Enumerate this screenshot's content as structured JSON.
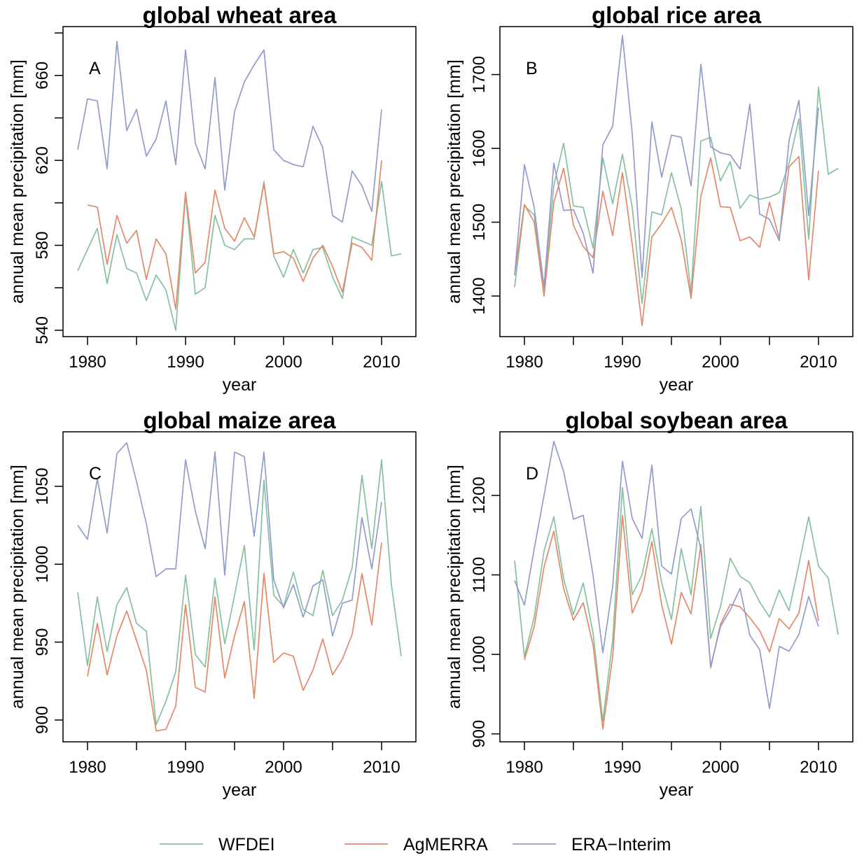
{
  "legend": {
    "position": "bottom",
    "entries": [
      {
        "label": "WFDEI",
        "color": "#86c0a0"
      },
      {
        "label": "AgMERRA",
        "color": "#e3896a"
      },
      {
        "label": "ERA−Interim",
        "color": "#929ccb"
      }
    ]
  },
  "chart_data": [
    {
      "type": "line",
      "panel_letter": "A",
      "title": "global wheat area",
      "xlabel": "year",
      "ylabel": "annual mean precipitation [mm]",
      "xlim": [
        1977.5,
        2013.5
      ],
      "ylim": [
        537,
        683
      ],
      "xticks": [
        1980,
        1985,
        1990,
        1995,
        2000,
        2005,
        2010
      ],
      "xtick_labels": [
        "1980",
        "",
        "1990",
        "",
        "2000",
        "",
        "2010"
      ],
      "yticks": [
        540,
        560,
        580,
        600,
        620,
        640,
        660,
        680
      ],
      "ytick_labels": [
        "540",
        "",
        "580",
        "",
        "620",
        "",
        "660",
        ""
      ],
      "grid": false,
      "series": [
        {
          "name": "WFDEI",
          "color": "#86c0a0",
          "x": [
            1979,
            1980,
            1981,
            1982,
            1983,
            1984,
            1985,
            1986,
            1987,
            1988,
            1989,
            1990,
            1991,
            1992,
            1993,
            1994,
            1995,
            1996,
            1997,
            1998,
            1999,
            2000,
            2001,
            2002,
            2003,
            2004,
            2005,
            2006,
            2007,
            2008,
            2009,
            2010,
            2011,
            2012
          ],
          "values": [
            568,
            578,
            588,
            562,
            585,
            569,
            567,
            554,
            566,
            559,
            540,
            604,
            557,
            560,
            594,
            580,
            578,
            583,
            583,
            610,
            575,
            565,
            578,
            567,
            578,
            579,
            565,
            555,
            584,
            582,
            580,
            610,
            575,
            576
          ]
        },
        {
          "name": "AgMERRA",
          "color": "#e3896a",
          "x": [
            1980,
            1981,
            1982,
            1983,
            1984,
            1985,
            1986,
            1987,
            1988,
            1989,
            1990,
            1991,
            1992,
            1993,
            1994,
            1995,
            1996,
            1997,
            1998,
            1999,
            2000,
            2001,
            2002,
            2003,
            2004,
            2005,
            2006,
            2007,
            2008,
            2009,
            2010
          ],
          "values": [
            599,
            598,
            571,
            594,
            581,
            587,
            564,
            583,
            576,
            550,
            605,
            567,
            572,
            606,
            588,
            582,
            593,
            584,
            609,
            576,
            577,
            574,
            563,
            574,
            580,
            570,
            558,
            581,
            579,
            573,
            620
          ]
        },
        {
          "name": "ERA−Interim",
          "color": "#929ccb",
          "x": [
            1979,
            1980,
            1981,
            1982,
            1983,
            1984,
            1985,
            1986,
            1987,
            1988,
            1989,
            1990,
            1991,
            1992,
            1993,
            1994,
            1995,
            1996,
            1997,
            1998,
            1999,
            2000,
            2001,
            2002,
            2003,
            2004,
            2005,
            2006,
            2007,
            2008,
            2009,
            2010
          ],
          "values": [
            625,
            649,
            648,
            616,
            676,
            634,
            644,
            622,
            630,
            648,
            618,
            672,
            628,
            616,
            659,
            606,
            643,
            657,
            665,
            672,
            625,
            620,
            618,
            617,
            636,
            626,
            594,
            591,
            615,
            608,
            596,
            644
          ]
        }
      ]
    },
    {
      "type": "line",
      "panel_letter": "B",
      "title": "global rice area",
      "xlabel": "year",
      "ylabel": "annual mean precipitation [mm]",
      "xlim": [
        1977.5,
        2013.5
      ],
      "ylim": [
        1345,
        1765
      ],
      "xticks": [
        1980,
        1985,
        1990,
        1995,
        2000,
        2005,
        2010
      ],
      "xtick_labels": [
        "1980",
        "",
        "1990",
        "",
        "2000",
        "",
        "2010"
      ],
      "yticks": [
        1400,
        1500,
        1600,
        1700
      ],
      "ytick_labels": [
        "1400",
        "1500",
        "1600",
        "1700"
      ],
      "grid": false,
      "series": [
        {
          "name": "WFDEI",
          "color": "#86c0a0",
          "x": [
            1979,
            1980,
            1981,
            1982,
            1983,
            1984,
            1985,
            1986,
            1987,
            1988,
            1989,
            1990,
            1991,
            1992,
            1993,
            1994,
            1995,
            1996,
            1997,
            1998,
            1999,
            2000,
            2001,
            2002,
            2003,
            2004,
            2005,
            2006,
            2007,
            2008,
            2009,
            2010,
            2011,
            2012
          ],
          "values": [
            1412,
            1522,
            1510,
            1410,
            1550,
            1607,
            1522,
            1520,
            1465,
            1587,
            1525,
            1592,
            1520,
            1390,
            1514,
            1510,
            1567,
            1518,
            1405,
            1610,
            1615,
            1556,
            1582,
            1519,
            1537,
            1531,
            1534,
            1540,
            1580,
            1640,
            1477,
            1683,
            1565,
            1573
          ]
        },
        {
          "name": "AgMERRA",
          "color": "#e3896a",
          "x": [
            1979,
            1980,
            1981,
            1982,
            1983,
            1984,
            1985,
            1986,
            1987,
            1988,
            1989,
            1990,
            1991,
            1992,
            1993,
            1994,
            1995,
            1996,
            1997,
            1998,
            1999,
            2000,
            2001,
            2002,
            2003,
            2004,
            2005,
            2006,
            2007,
            2008,
            2009,
            2010
          ],
          "values": [
            1428,
            1524,
            1500,
            1400,
            1527,
            1573,
            1496,
            1467,
            1452,
            1542,
            1482,
            1567,
            1470,
            1360,
            1480,
            1498,
            1520,
            1476,
            1397,
            1535,
            1587,
            1521,
            1520,
            1475,
            1480,
            1466,
            1527,
            1478,
            1575,
            1589,
            1422,
            1570
          ]
        },
        {
          "name": "ERA−Interim",
          "color": "#929ccb",
          "x": [
            1979,
            1980,
            1981,
            1982,
            1983,
            1984,
            1985,
            1986,
            1987,
            1988,
            1989,
            1990,
            1991,
            1992,
            1993,
            1994,
            1995,
            1996,
            1997,
            1998,
            1999,
            2000,
            2001,
            2002,
            2003,
            2004,
            2005,
            2006,
            2007,
            2008,
            2009,
            2010
          ],
          "values": [
            1428,
            1578,
            1520,
            1412,
            1580,
            1516,
            1517,
            1485,
            1431,
            1605,
            1630,
            1753,
            1620,
            1425,
            1636,
            1561,
            1618,
            1615,
            1549,
            1714,
            1602,
            1594,
            1591,
            1572,
            1660,
            1511,
            1504,
            1475,
            1611,
            1665,
            1509,
            1655
          ]
        }
      ]
    },
    {
      "type": "line",
      "panel_letter": "C",
      "title": "global maize area",
      "xlabel": "year",
      "ylabel": "annual mean precipitation [mm]",
      "xlim": [
        1977.5,
        2013.5
      ],
      "ylim": [
        886,
        1085
      ],
      "xticks": [
        1980,
        1985,
        1990,
        1995,
        2000,
        2005,
        2010
      ],
      "xtick_labels": [
        "1980",
        "",
        "1990",
        "",
        "2000",
        "",
        "2010"
      ],
      "yticks": [
        900,
        950,
        1000,
        1050
      ],
      "ytick_labels": [
        "900",
        "950",
        "1000",
        "1050"
      ],
      "grid": false,
      "series": [
        {
          "name": "WFDEI",
          "color": "#86c0a0",
          "x": [
            1979,
            1980,
            1981,
            1982,
            1983,
            1984,
            1985,
            1986,
            1987,
            1988,
            1989,
            1990,
            1991,
            1992,
            1993,
            1994,
            1995,
            1996,
            1997,
            1998,
            1999,
            2000,
            2001,
            2002,
            2003,
            2004,
            2005,
            2006,
            2007,
            2008,
            2009,
            2010,
            2011,
            2012
          ],
          "values": [
            982,
            935,
            979,
            944,
            974,
            985,
            962,
            957,
            897,
            912,
            931,
            993,
            942,
            934,
            991,
            949,
            980,
            1012,
            945,
            1054,
            980,
            973,
            995,
            971,
            967,
            996,
            967,
            977,
            998,
            1057,
            1010,
            1067,
            987,
            941
          ]
        },
        {
          "name": "AgMERRA",
          "color": "#e3896a",
          "x": [
            1980,
            1981,
            1982,
            1983,
            1984,
            1985,
            1986,
            1987,
            1988,
            1989,
            1990,
            1991,
            1992,
            1993,
            1994,
            1995,
            1996,
            1997,
            1998,
            1999,
            2000,
            2001,
            2002,
            2003,
            2004,
            2005,
            2006,
            2007,
            2008,
            2009,
            2010
          ],
          "values": [
            928,
            962,
            929,
            954,
            970,
            951,
            932,
            893,
            894,
            909,
            974,
            921,
            918,
            979,
            927,
            954,
            976,
            914,
            994,
            937,
            943,
            941,
            919,
            932,
            952,
            929,
            939,
            955,
            994,
            961,
            1014
          ]
        },
        {
          "name": "ERA−Interim",
          "color": "#929ccb",
          "x": [
            1979,
            1980,
            1981,
            1982,
            1983,
            1984,
            1985,
            1986,
            1987,
            1988,
            1989,
            1990,
            1991,
            1992,
            1993,
            1994,
            1995,
            1996,
            1997,
            1998,
            1999,
            2000,
            2001,
            2002,
            2003,
            2004,
            2005,
            2006,
            2007,
            2008,
            2009,
            2010
          ],
          "values": [
            1025,
            1016,
            1055,
            1020,
            1071,
            1078,
            1053,
            1026,
            992,
            997,
            997,
            1067,
            1034,
            1010,
            1072,
            993,
            1072,
            1069,
            1018,
            1072,
            990,
            972,
            987,
            966,
            986,
            990,
            954,
            975,
            977,
            1030,
            997,
            1040
          ]
        }
      ]
    },
    {
      "type": "line",
      "panel_letter": "D",
      "title": "global soybean area",
      "xlabel": "year",
      "ylabel": "annual mean precipitation [mm]",
      "xlim": [
        1977.5,
        2013.5
      ],
      "ylim": [
        890,
        1280
      ],
      "xticks": [
        1980,
        1985,
        1990,
        1995,
        2000,
        2005,
        2010
      ],
      "xtick_labels": [
        "1980",
        "",
        "1990",
        "",
        "2000",
        "",
        "2010"
      ],
      "yticks": [
        900,
        1000,
        1100,
        1200
      ],
      "ytick_labels": [
        "900",
        "1000",
        "1100",
        "1200"
      ],
      "grid": false,
      "series": [
        {
          "name": "WFDEI",
          "color": "#86c0a0",
          "x": [
            1979,
            1980,
            1981,
            1982,
            1983,
            1984,
            1985,
            1986,
            1987,
            1988,
            1989,
            1990,
            1991,
            1992,
            1993,
            1994,
            1995,
            1996,
            1997,
            1998,
            1999,
            2000,
            2001,
            2002,
            2003,
            2004,
            2005,
            2006,
            2007,
            2008,
            2009,
            2010,
            2011,
            2012
          ],
          "values": [
            1118,
            997,
            1047,
            1130,
            1173,
            1095,
            1050,
            1090,
            1027,
            916,
            1018,
            1210,
            1075,
            1100,
            1158,
            1090,
            1044,
            1133,
            1075,
            1186,
            1020,
            1060,
            1121,
            1098,
            1090,
            1066,
            1047,
            1081,
            1055,
            1113,
            1173,
            1111,
            1096,
            1025
          ]
        },
        {
          "name": "AgMERRA",
          "color": "#e3896a",
          "x": [
            1980,
            1981,
            1982,
            1983,
            1984,
            1985,
            1986,
            1987,
            1988,
            1989,
            1990,
            1991,
            1992,
            1993,
            1994,
            1995,
            1996,
            1997,
            1998,
            1999,
            2000,
            2001,
            2002,
            2003,
            2004,
            2005,
            2006,
            2007,
            2008,
            2009,
            2010
          ],
          "values": [
            993,
            1035,
            1110,
            1155,
            1083,
            1043,
            1065,
            1012,
            906,
            997,
            1175,
            1052,
            1080,
            1142,
            1062,
            1013,
            1078,
            1051,
            1138,
            983,
            1038,
            1063,
            1060,
            1046,
            1030,
            1003,
            1045,
            1032,
            1052,
            1118,
            1042
          ]
        },
        {
          "name": "ERA−Interim",
          "color": "#929ccb",
          "x": [
            1979,
            1980,
            1981,
            1982,
            1983,
            1984,
            1985,
            1986,
            1987,
            1988,
            1989,
            1990,
            1991,
            1992,
            1993,
            1994,
            1995,
            1996,
            1997,
            1998,
            1999,
            2000,
            2001,
            2002,
            2003,
            2004,
            2005,
            2006,
            2007,
            2008,
            2009,
            2010
          ],
          "values": [
            1093,
            1062,
            1133,
            1200,
            1268,
            1230,
            1170,
            1175,
            1100,
            1002,
            1085,
            1243,
            1171,
            1146,
            1238,
            1111,
            1101,
            1171,
            1183,
            1133,
            985,
            1035,
            1056,
            1083,
            1024,
            1006,
            932,
            1010,
            1004,
            1025,
            1073,
            1035
          ]
        }
      ]
    }
  ]
}
